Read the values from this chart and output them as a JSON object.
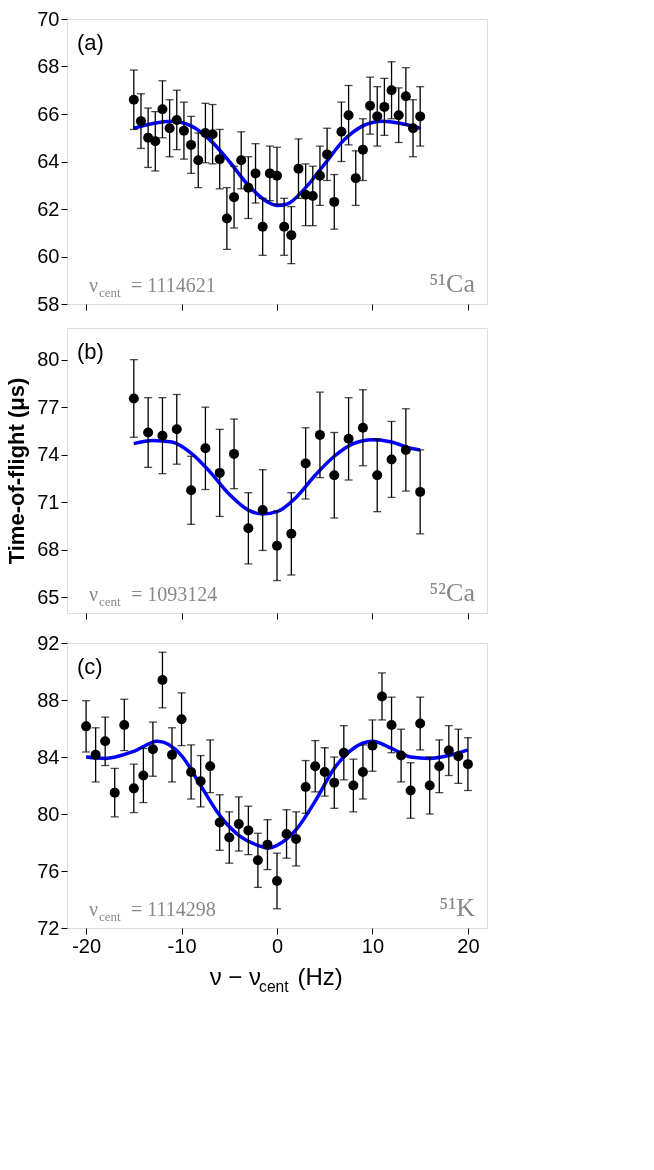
{
  "chart_data": [
    {
      "type": "scatter",
      "xlim": [
        -22,
        22
      ],
      "xticks": [
        -20,
        -10,
        0,
        10,
        20
      ],
      "ylim": [
        58,
        70
      ],
      "yticks": [
        58,
        60,
        62,
        64,
        66,
        68,
        70
      ],
      "tick_labels": "y",
      "grid": false,
      "annotations": [
        "(a)",
        "ν$_{cent}$ = 1114621",
        "⁵¹Ca"
      ],
      "series": [
        {
          "marker": "circle",
          "color": "#000000",
          "x": [
            -15,
            -14.25,
            -13.5,
            -12.75,
            -12,
            -11.25,
            -10.5,
            -9.75,
            -9,
            -8.25,
            -7.5,
            -6.75,
            -6,
            -5.25,
            -4.5,
            -3.75,
            -3,
            -2.25,
            -1.5,
            -0.75,
            0,
            0.75,
            1.5,
            2.25,
            3,
            3.75,
            4.5,
            5.25,
            6,
            6.75,
            7.5,
            8.25,
            9,
            9.75,
            10.5,
            11.25,
            12,
            12.75,
            13.5,
            14.25,
            15
          ],
          "values": [
            66.6,
            65.7,
            65.0,
            64.85,
            66.2,
            65.4,
            65.75,
            65.3,
            64.7,
            64.05,
            65.2,
            65.15,
            64.1,
            61.6,
            62.5,
            64.05,
            62.9,
            63.5,
            61.25,
            63.5,
            63.4,
            61.25,
            60.9,
            63.7,
            62.6,
            62.55,
            63.4,
            64.3,
            62.3,
            65.25,
            65.95,
            63.3,
            64.5,
            66.35,
            65.9,
            66.3,
            67.0,
            65.95,
            66.75,
            65.4,
            65.9
          ],
          "errors": [
            1.25,
            1.15,
            1.25,
            1.25,
            1.2,
            1.2,
            1.25,
            1.2,
            1.2,
            1.15,
            1.25,
            1.25,
            1.25,
            1.3,
            1.3,
            1.2,
            1.3,
            1.25,
            1.2,
            1.15,
            1.2,
            1.2,
            1.2,
            1.25,
            1.3,
            1.25,
            1.25,
            1.1,
            1.15,
            1.25,
            1.25,
            1.15,
            1.3,
            1.2,
            1.25,
            1.2,
            1.2,
            1.15,
            1.2,
            1.2,
            1.25
          ]
        },
        {
          "type": "line",
          "marker": "none",
          "color": "#0000ff",
          "x": [
            -15,
            -13,
            -11,
            -9,
            -7,
            -5,
            -3,
            -1,
            0,
            1,
            3,
            5,
            7,
            9,
            11,
            13,
            15
          ],
          "values": [
            65.4,
            65.6,
            65.7,
            65.5,
            64.9,
            64.0,
            63.0,
            62.3,
            62.15,
            62.2,
            62.9,
            63.9,
            64.9,
            65.5,
            65.7,
            65.6,
            65.4
          ]
        }
      ]
    },
    {
      "type": "scatter",
      "ylabel": "Time-of-flight (μs)",
      "xlim": [
        -22,
        22
      ],
      "xticks": [
        -20,
        -10,
        0,
        10,
        20
      ],
      "ylim": [
        64,
        82
      ],
      "yticks": [
        65,
        68,
        71,
        74,
        77,
        80
      ],
      "tick_labels": "y",
      "grid": false,
      "annotations": [
        "(b)",
        "ν$_{cent}$ = 1093124",
        "⁵²Ca"
      ],
      "series": [
        {
          "marker": "circle",
          "color": "#000000",
          "x": [
            -15,
            -13.5,
            -12,
            -10.5,
            -9,
            -7.5,
            -6,
            -4.5,
            -3,
            -1.5,
            0,
            1.5,
            3,
            4.5,
            6,
            7.5,
            9,
            10.5,
            12,
            13.5,
            15
          ],
          "values": [
            77.55,
            75.4,
            75.2,
            75.6,
            71.75,
            74.4,
            72.85,
            74.05,
            69.35,
            70.5,
            68.25,
            69.0,
            73.45,
            75.25,
            72.7,
            75.0,
            75.7,
            72.7,
            73.7,
            74.3,
            71.65
          ],
          "errors": [
            2.45,
            2.2,
            2.4,
            2.2,
            2.15,
            2.6,
            2.75,
            2.2,
            2.25,
            2.55,
            2.2,
            2.6,
            2.25,
            2.7,
            2.7,
            2.6,
            2.4,
            2.3,
            2.4,
            2.6,
            2.65
          ]
        },
        {
          "type": "line",
          "marker": "none",
          "color": "#0000ff",
          "x": [
            -15,
            -13,
            -11,
            -9,
            -7,
            -5,
            -3,
            -1.5,
            0,
            2,
            4,
            6,
            8,
            10,
            12,
            14,
            15
          ],
          "values": [
            74.7,
            74.9,
            74.8,
            74.1,
            72.9,
            71.5,
            70.5,
            70.25,
            70.4,
            71.3,
            72.7,
            73.9,
            74.7,
            74.95,
            74.8,
            74.4,
            74.3
          ]
        }
      ]
    },
    {
      "type": "scatter",
      "xlabel": "ν − ν$_{cent}$ (Hz)",
      "xlim": [
        -22,
        22
      ],
      "xticks": [
        -20,
        -10,
        0,
        10,
        20
      ],
      "ylim": [
        72,
        92
      ],
      "yticks": [
        72,
        76,
        80,
        84,
        88,
        92
      ],
      "grid": false,
      "annotations": [
        "(c)",
        "ν$_{cent}$ = 1114298",
        "⁵¹K"
      ],
      "series": [
        {
          "marker": "circle",
          "color": "#000000",
          "x": [
            -20,
            -19,
            -18,
            -17,
            -16,
            -15,
            -14,
            -13,
            -12,
            -11,
            -10,
            -9,
            -8,
            -7,
            -6,
            -5,
            -4,
            -3,
            -2,
            -1,
            0,
            1,
            2,
            3,
            4,
            5,
            6,
            7,
            8,
            9,
            10,
            11,
            12,
            13,
            14,
            15,
            16,
            17,
            18,
            19,
            20
          ],
          "values": [
            86.15,
            84.15,
            85.1,
            81.5,
            86.25,
            81.8,
            82.7,
            84.55,
            89.4,
            84.15,
            86.65,
            82.95,
            82.3,
            83.35,
            79.4,
            78.35,
            79.3,
            78.85,
            76.75,
            77.85,
            75.3,
            78.6,
            78.25,
            81.9,
            83.35,
            82.95,
            82.2,
            84.3,
            82.0,
            82.95,
            84.8,
            88.25,
            86.25,
            84.1,
            81.65,
            86.35,
            82.0,
            83.35,
            84.45,
            84.05,
            83.5
          ],
          "errors": [
            1.8,
            1.9,
            1.7,
            1.7,
            1.8,
            1.7,
            1.9,
            1.9,
            1.95,
            1.9,
            1.85,
            1.9,
            1.8,
            1.85,
            1.95,
            1.8,
            1.9,
            1.7,
            1.9,
            1.75,
            1.95,
            1.7,
            1.9,
            1.85,
            1.8,
            1.7,
            1.8,
            1.9,
            1.85,
            1.9,
            1.8,
            1.65,
            1.95,
            1.85,
            1.95,
            1.85,
            2.0,
            1.85,
            1.75,
            1.9,
            1.85
          ]
        },
        {
          "type": "line",
          "marker": "none",
          "color": "#0000ff",
          "x": [
            -20,
            -18,
            -15,
            -12.5,
            -10,
            -8,
            -6,
            -4,
            -2,
            -1,
            0,
            2,
            4,
            6,
            8,
            10,
            12,
            14,
            16,
            18,
            20
          ],
          "values": [
            84.0,
            83.9,
            84.4,
            85.1,
            84.1,
            82.0,
            79.9,
            78.5,
            77.8,
            77.6,
            77.8,
            78.9,
            80.9,
            83.2,
            84.6,
            85.1,
            84.6,
            84.0,
            83.9,
            84.1,
            84.5
          ]
        }
      ]
    }
  ]
}
